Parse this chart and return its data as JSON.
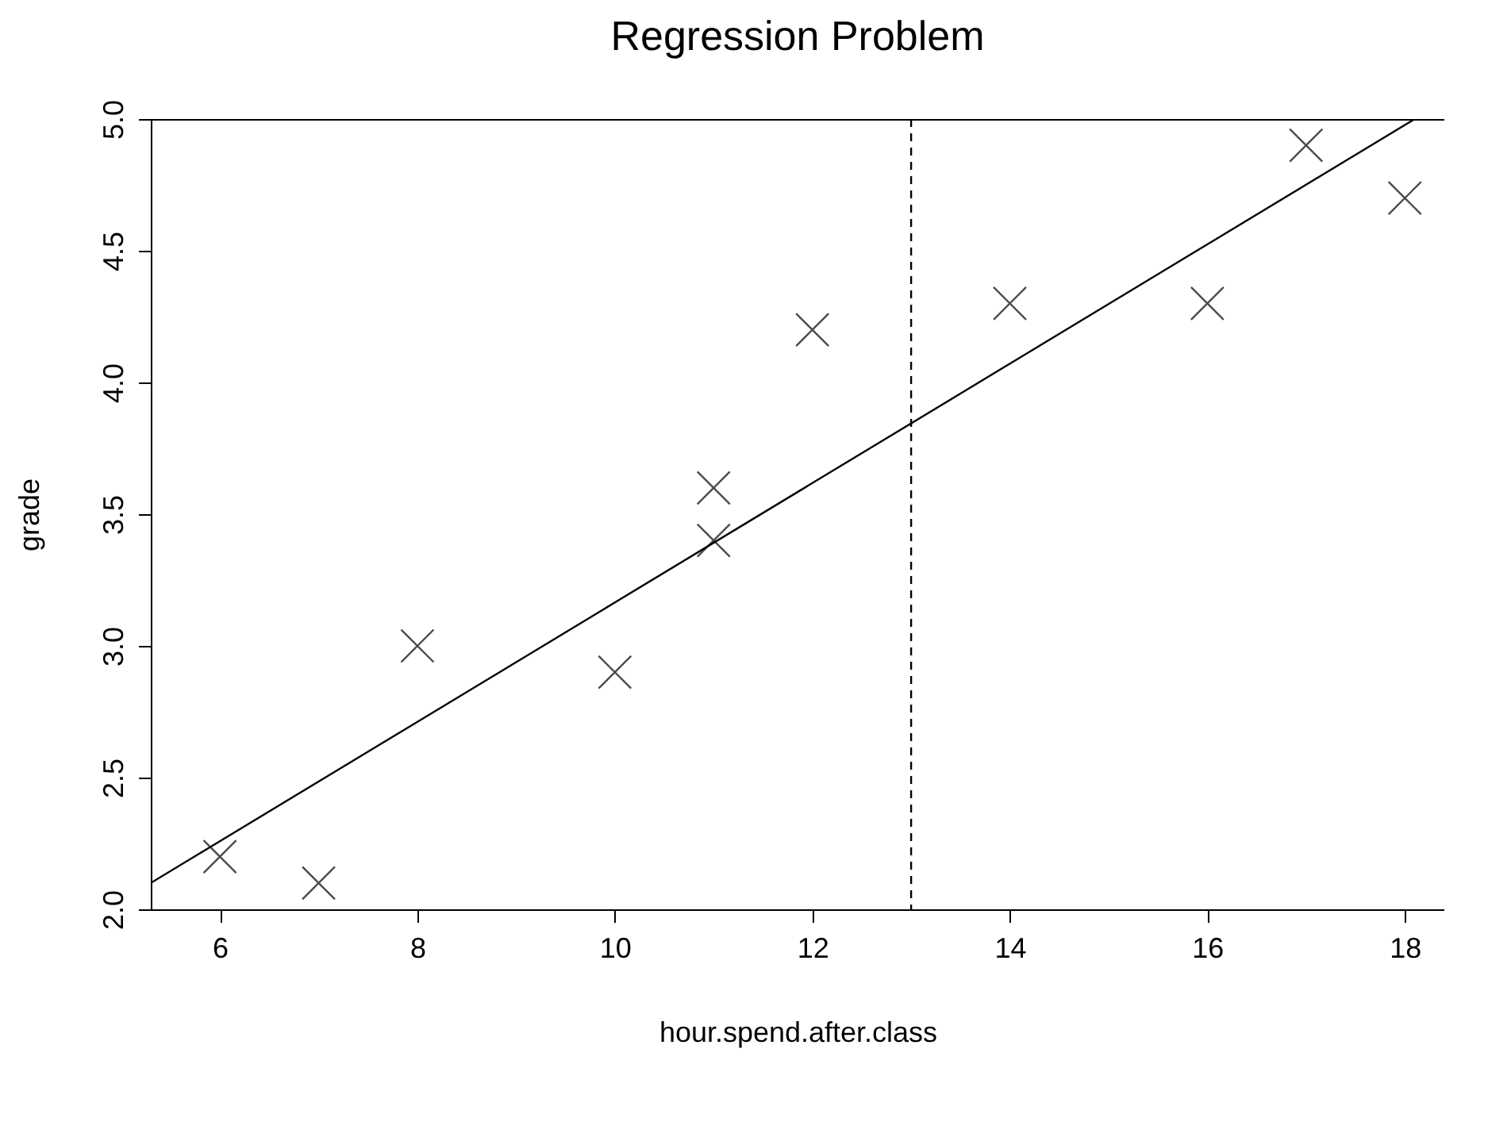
{
  "chart_data": {
    "type": "scatter",
    "title": "Regression Problem",
    "xlabel": "hour.spend.after.class",
    "ylabel": "grade",
    "xlim": [
      5.3,
      18.4
    ],
    "ylim": [
      2,
      5
    ],
    "xticks": [
      6,
      8,
      10,
      12,
      14,
      16,
      18
    ],
    "yticks": [
      {
        "value": 2,
        "label": "2.0"
      },
      2.5,
      {
        "value": 3,
        "label": "3.0"
      },
      3.5,
      {
        "value": 4,
        "label": "4.0"
      },
      4.5,
      {
        "value": 5,
        "label": "5.0"
      }
    ],
    "grid": false,
    "marker": "cross",
    "series": [
      {
        "color": "#000000",
        "x": [
          6,
          7,
          8,
          10,
          11,
          11,
          12,
          14,
          16,
          17,
          18
        ],
        "values": [
          2.2,
          2.1,
          3.0,
          2.9,
          3.6,
          3.4,
          4.2,
          4.3,
          4.3,
          4.9,
          4.7
        ]
      },
      {
        "type": "line",
        "color": "#000000",
        "line_style": "solid",
        "marker": "none",
        "x": [
          5.3,
          18.1
        ],
        "values": [
          2.1,
          5.0
        ]
      }
    ],
    "ref_lines": [
      {
        "axis": "x",
        "value": 13,
        "line_style": "dashed",
        "color": "#000000"
      }
    ]
  }
}
